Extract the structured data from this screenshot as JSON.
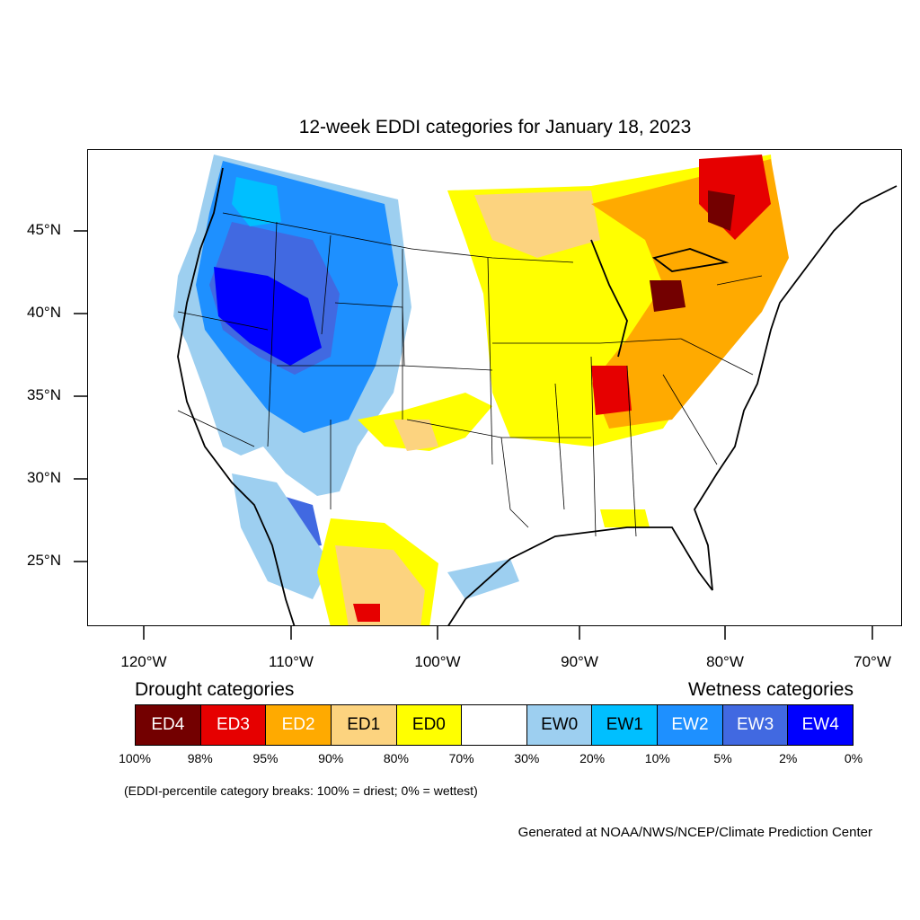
{
  "title": "12-week EDDI categories for January 18, 2023",
  "map": {
    "lat_labels": [
      "45°N",
      "40°N",
      "35°N",
      "30°N",
      "25°N"
    ],
    "lon_labels": [
      "120°W",
      "110°W",
      "100°W",
      "90°W",
      "80°W",
      "70°W"
    ]
  },
  "legend": {
    "drought_heading": "Drought categories",
    "wetness_heading": "Wetness categories",
    "categories": [
      {
        "label": "ED4",
        "color": "#730000"
      },
      {
        "label": "ED3",
        "color": "#e60000"
      },
      {
        "label": "ED2",
        "color": "#ffaa00"
      },
      {
        "label": "ED1",
        "color": "#fcd37f"
      },
      {
        "label": "ED0",
        "color": "#ffff00"
      },
      {
        "label": "",
        "color": "#ffffff"
      },
      {
        "label": "EW0",
        "color": "#9dcff0"
      },
      {
        "label": "EW1",
        "color": "#00bfff"
      },
      {
        "label": "EW2",
        "color": "#1e90ff"
      },
      {
        "label": "EW3",
        "color": "#4169e1"
      },
      {
        "label": "EW4",
        "color": "#0000ff"
      }
    ],
    "breaks": [
      "100%",
      "98%",
      "95%",
      "90%",
      "80%",
      "70%",
      "30%",
      "20%",
      "10%",
      "5%",
      "2%",
      "0%"
    ]
  },
  "note": "(EDDI-percentile category breaks: 100% = driest; 0% = wettest)",
  "credit": "Generated at NOAA/NWS/NCEP/Climate Prediction Center"
}
